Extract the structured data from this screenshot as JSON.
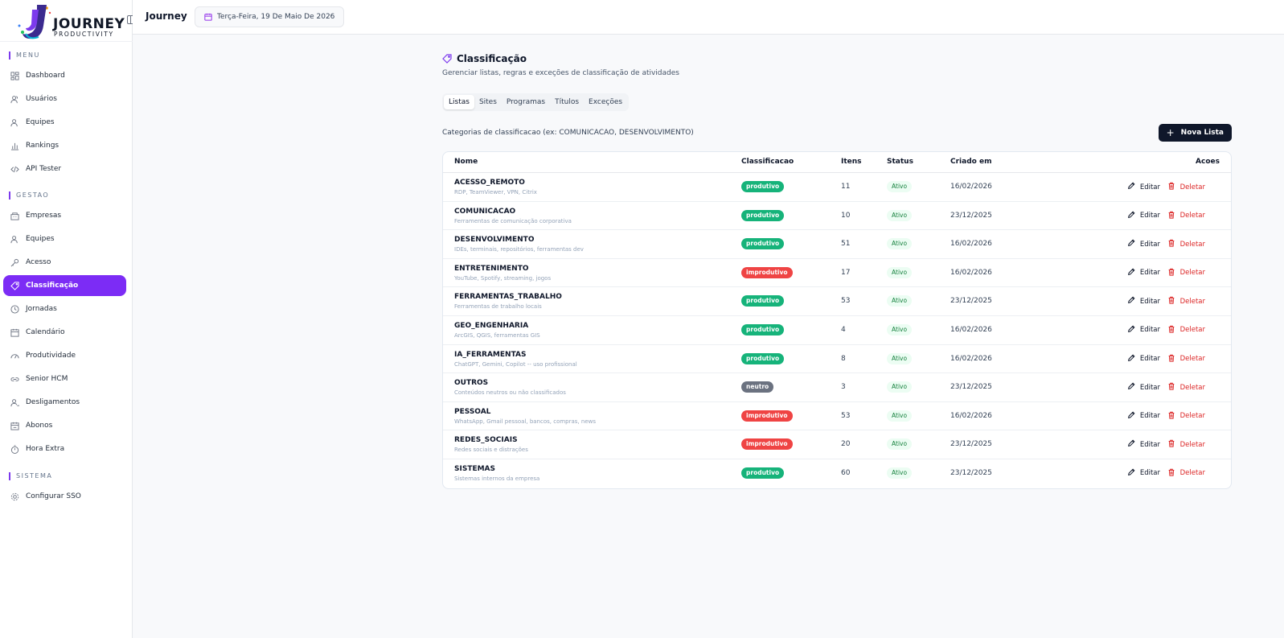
{
  "app": {
    "name": "Journey",
    "logo_text": "JOURNEY",
    "logo_sub": "PRODUCTIVITY"
  },
  "topbar": {
    "title": "Journey",
    "date": "Terça-Feira, 19 De Maio De 2026"
  },
  "sidebar": {
    "sections": [
      {
        "label": "MENU",
        "items": [
          {
            "label": "Dashboard",
            "icon": "dashboard-icon"
          },
          {
            "label": "Usuários",
            "icon": "users-icon"
          },
          {
            "label": "Equipes",
            "icon": "team-icon"
          },
          {
            "label": "Rankings",
            "icon": "bar-chart-icon"
          },
          {
            "label": "API Tester",
            "icon": "code-icon"
          }
        ]
      },
      {
        "label": "GESTAO",
        "items": [
          {
            "label": "Empresas",
            "icon": "building-icon"
          },
          {
            "label": "Equipes",
            "icon": "team-icon"
          },
          {
            "label": "Acesso",
            "icon": "key-icon"
          },
          {
            "label": "Classificação",
            "icon": "tag-icon"
          },
          {
            "label": "Jornadas",
            "icon": "clock-icon"
          },
          {
            "label": "Calendário",
            "icon": "calendar-icon"
          },
          {
            "label": "Produtividade",
            "icon": "gauge-icon"
          },
          {
            "label": "Senior HCM",
            "icon": "link-icon"
          },
          {
            "label": "Desligamentos",
            "icon": "user-minus-icon"
          },
          {
            "label": "Abonos",
            "icon": "calendar-check-icon"
          },
          {
            "label": "Hora Extra",
            "icon": "timer-icon"
          }
        ]
      },
      {
        "label": "SISTEMA",
        "items": [
          {
            "label": "Configurar SSO",
            "icon": "gear-icon"
          }
        ]
      }
    ]
  },
  "page": {
    "title": "Classificação",
    "subtitle": "Gerenciar listas, regras e exceções de classificação de atividades",
    "tabs": [
      "Listas",
      "Sites",
      "Programas",
      "Títulos",
      "Exceções"
    ],
    "active_tab": "Listas",
    "list_description": "Categorias de classificacao (ex: COMUNICACAO, DESENVOLVIMENTO)",
    "new_button": "Nova Lista"
  },
  "table": {
    "headers": {
      "name": "Nome",
      "class": "Classificacao",
      "items": "Itens",
      "status": "Status",
      "created": "Criado em",
      "actions": "Acoes"
    },
    "edit_label": "Editar",
    "delete_label": "Deletar",
    "rows": [
      {
        "name": "ACESSO_REMOTO",
        "desc": "RDP, TeamViewer, VPN, Citrix",
        "class": "produtivo",
        "items": "11",
        "status": "Ativo",
        "created": "16/02/2026"
      },
      {
        "name": "COMUNICACAO",
        "desc": "Ferramentas de comunicação corporativa",
        "class": "produtivo",
        "items": "10",
        "status": "Ativo",
        "created": "23/12/2025"
      },
      {
        "name": "DESENVOLVIMENTO",
        "desc": "IDEs, terminais, repositórios, ferramentas dev",
        "class": "produtivo",
        "items": "51",
        "status": "Ativo",
        "created": "16/02/2026"
      },
      {
        "name": "ENTRETENIMENTO",
        "desc": "YouTube, Spotify, streaming, jogos",
        "class": "improdutivo",
        "items": "17",
        "status": "Ativo",
        "created": "16/02/2026"
      },
      {
        "name": "FERRAMENTAS_TRABALHO",
        "desc": "Ferramentas de trabalho locais",
        "class": "produtivo",
        "items": "53",
        "status": "Ativo",
        "created": "23/12/2025"
      },
      {
        "name": "GEO_ENGENHARIA",
        "desc": "ArcGIS, QGIS, ferramentas GIS",
        "class": "produtivo",
        "items": "4",
        "status": "Ativo",
        "created": "16/02/2026"
      },
      {
        "name": "IA_FERRAMENTAS",
        "desc": "ChatGPT, Gemini, Copilot -- uso profissional",
        "class": "produtivo",
        "items": "8",
        "status": "Ativo",
        "created": "16/02/2026"
      },
      {
        "name": "OUTROS",
        "desc": "Conteúdos neutros ou não classificados",
        "class": "neutro",
        "items": "3",
        "status": "Ativo",
        "created": "23/12/2025"
      },
      {
        "name": "PESSOAL",
        "desc": "WhatsApp, Gmail pessoal, bancos, compras, news",
        "class": "improdutivo",
        "items": "53",
        "status": "Ativo",
        "created": "16/02/2026"
      },
      {
        "name": "REDES_SOCIAIS",
        "desc": "Redes sociais e distrações",
        "class": "improdutivo",
        "items": "20",
        "status": "Ativo",
        "created": "23/12/2025"
      },
      {
        "name": "SISTEMAS",
        "desc": "Sistemas internos da empresa",
        "class": "produtivo",
        "items": "60",
        "status": "Ativo",
        "created": "23/12/2025"
      }
    ]
  },
  "colors": {
    "accent": "#7c2cf5",
    "produtivo": "#16b37a",
    "improdutivo": "#ef4444",
    "neutro": "#6b7280",
    "primary_button": "#0f172a"
  }
}
